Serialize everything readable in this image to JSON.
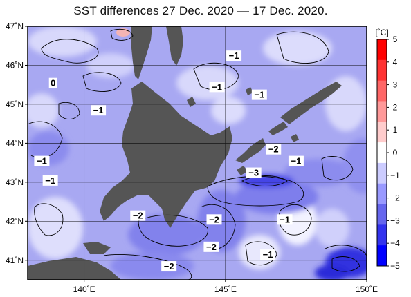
{
  "title": "SST differences 27 Dec. 2020 — 17 Dec. 2020.",
  "chart_data": {
    "type": "heatmap",
    "title": "SST differences 27 Dec. 2020 — 17 Dec. 2020.",
    "x_ticks": [
      "140˚E",
      "145˚E",
      "150˚E"
    ],
    "y_ticks": [
      "47˚N",
      "46˚N",
      "45˚N",
      "44˚N",
      "43˚N",
      "42˚N",
      "41˚N"
    ],
    "xlim": [
      138,
      150
    ],
    "ylim": [
      40.5,
      47
    ],
    "colorbar": {
      "unit": "[˚C]",
      "ticks": [
        "5",
        "4",
        "3",
        "2",
        "1",
        "0",
        "−1",
        "−2",
        "−3",
        "−4",
        "−5"
      ],
      "range": [
        -5,
        5
      ],
      "colors": [
        "#ff0000",
        "#ff3333",
        "#ff6666",
        "#ff9999",
        "#ffcccc",
        "#ffffff",
        "#ccccff",
        "#9999ff",
        "#6666ee",
        "#3333ee",
        "#0000ff"
      ]
    },
    "contour_labels": [
      {
        "text": "0",
        "lon": 138.9,
        "lat": 45.5
      },
      {
        "text": "−1",
        "lon": 145.3,
        "lat": 46.2
      },
      {
        "text": "−1",
        "lon": 144.7,
        "lat": 45.4
      },
      {
        "text": "−1",
        "lon": 146.2,
        "lat": 45.2
      },
      {
        "text": "−1",
        "lon": 140.5,
        "lat": 44.8
      },
      {
        "text": "−1",
        "lon": 138.5,
        "lat": 43.5
      },
      {
        "text": "−1",
        "lon": 138.8,
        "lat": 43.0
      },
      {
        "text": "−2",
        "lon": 146.7,
        "lat": 43.8
      },
      {
        "text": "−1",
        "lon": 147.5,
        "lat": 43.5
      },
      {
        "text": "−3",
        "lon": 146.0,
        "lat": 43.2
      },
      {
        "text": "−2",
        "lon": 141.9,
        "lat": 42.1
      },
      {
        "text": "−2",
        "lon": 144.6,
        "lat": 42.0
      },
      {
        "text": "−1",
        "lon": 147.1,
        "lat": 42.0
      },
      {
        "text": "−2",
        "lon": 144.5,
        "lat": 41.3
      },
      {
        "text": "−1",
        "lon": 146.5,
        "lat": 41.1
      },
      {
        "text": "−2",
        "lon": 143.0,
        "lat": 40.8
      }
    ],
    "colors": {
      "land": "#555555",
      "sea_base": "#a8a8f2",
      "frame": "#000000",
      "grid": "#000000"
    }
  }
}
